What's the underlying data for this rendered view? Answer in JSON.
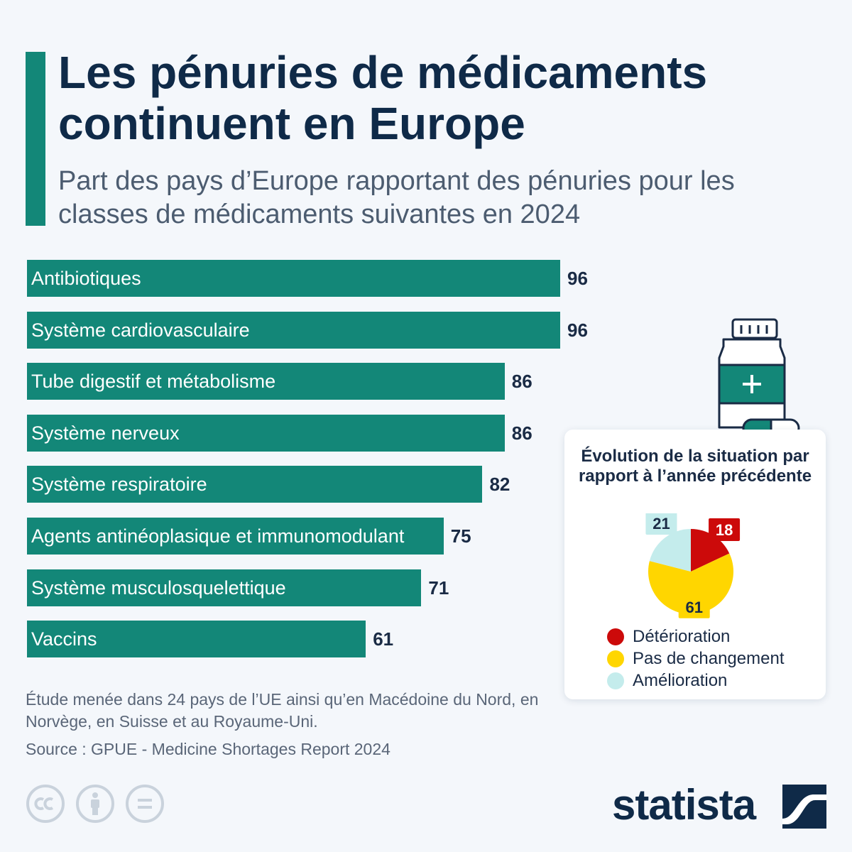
{
  "header": {
    "title": "Les pénuries de médicaments continuent en Europe",
    "subtitle": "Part des pays d’Europe rapportant des pénuries pour les classes de médicaments suivantes en 2024"
  },
  "chart_data": [
    {
      "type": "bar",
      "orientation": "horizontal",
      "categories": [
        "Antibiotiques",
        "Système cardiovasculaire",
        "Tube digestif et métabolisme",
        "Système nerveux",
        "Système respiratoire",
        "Agents antinéoplasique et immunomodulant",
        "Système musculosquelettique",
        "Vaccins"
      ],
      "values": [
        96,
        96,
        86,
        86,
        82,
        75,
        71,
        61
      ],
      "xlim": [
        0,
        100
      ],
      "grid": false,
      "color": "#138778"
    },
    {
      "type": "pie",
      "title": "Évolution de la situation par rapport à l’année précédente",
      "slices": [
        {
          "label": "Détérioration",
          "value": 18,
          "color": "#cc0a0a"
        },
        {
          "label": "Pas de changement",
          "value": 61,
          "color": "#ffd600"
        },
        {
          "label": "Amélioration",
          "value": 21,
          "color": "#c4ecec"
        }
      ],
      "legend_position": "bottom"
    }
  ],
  "footer": {
    "note": "Étude menée dans 24 pays de l’UE ainsi qu’en Macédoine du Nord, en Norvège, en Suisse et au Royaume-Uni.",
    "source": "Source : GPUE - Medicine Shortages Report 2024",
    "brand": "statista"
  },
  "icons": {
    "license": [
      "creative-commons-icon",
      "attribution-icon",
      "no-derivatives-icon"
    ],
    "illustration": "medicine-bottle-icon",
    "logo": "statista-logo-icon"
  },
  "colors": {
    "accent": "#138778",
    "title": "#0f2a48",
    "text_muted": "#5a6678"
  }
}
